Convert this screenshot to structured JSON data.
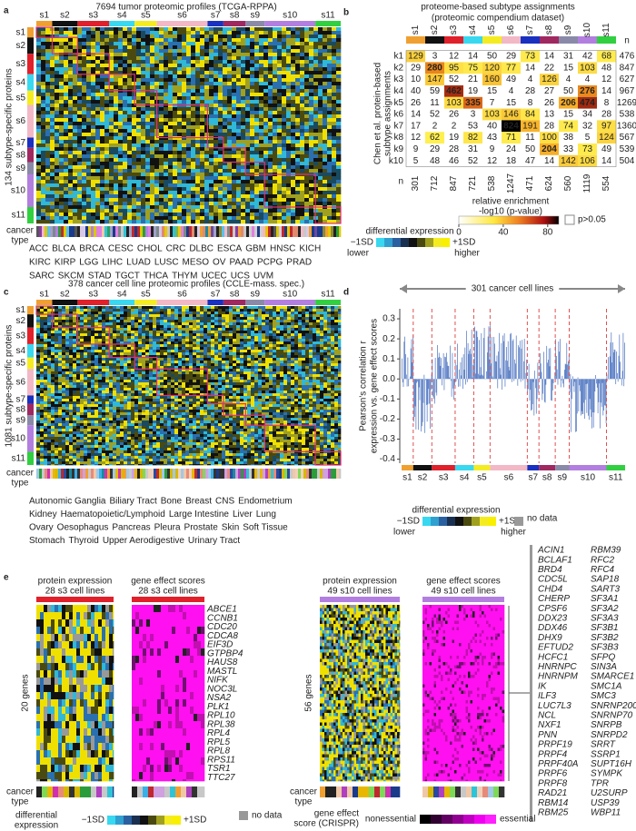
{
  "subtypes": [
    {
      "name": "s1",
      "color": "#f0a030"
    },
    {
      "name": "s2",
      "color": "#111111"
    },
    {
      "name": "s3",
      "color": "#e0202a"
    },
    {
      "name": "s4",
      "color": "#38d8f0"
    },
    {
      "name": "s5",
      "color": "#f4ec20"
    },
    {
      "name": "s6",
      "color": "#f2b8c6"
    },
    {
      "name": "s7",
      "color": "#1a30c0"
    },
    {
      "name": "s8",
      "color": "#a02860"
    },
    {
      "name": "s9",
      "color": "#8a8aa8"
    },
    {
      "name": "s10",
      "color": "#b27fe0"
    },
    {
      "name": "s11",
      "color": "#30d040"
    }
  ],
  "expression_legend": {
    "title": "differential expression",
    "low": "−1SD",
    "high": "+1SD",
    "low_word": "lower",
    "high_word": "higher",
    "no_data": "no data"
  },
  "panel_a": {
    "letter": "a",
    "title": "7694 tumor proteomic profiles (TCGA-RPPA)",
    "y_label": "134 subtype-specific proteins",
    "track_label": [
      "cancer",
      "type"
    ],
    "cancer_types": [
      [
        {
          "name": "ACC",
          "color": "#c8c8c8"
        },
        {
          "name": "BLCA",
          "color": "#5bc0eb"
        },
        {
          "name": "BRCA",
          "color": "#1a3a8a"
        },
        {
          "name": "CESC",
          "color": "#555555"
        },
        {
          "name": "CHOL",
          "color": "#e08a6e"
        },
        {
          "name": "CRC",
          "color": "#222222"
        },
        {
          "name": "DLBC",
          "color": "#f0a030"
        },
        {
          "name": "ESCA",
          "color": "#2ec4d8"
        },
        {
          "name": "GBM",
          "color": "#2a9d3a"
        },
        {
          "name": "HNSC",
          "color": "#f2b8c6"
        },
        {
          "name": "KICH",
          "color": "#c0282d"
        }
      ],
      [
        {
          "name": "KIRC",
          "color": "#d8c800"
        },
        {
          "name": "KIRP",
          "color": "#8a8a3a"
        },
        {
          "name": "LGG",
          "color": "#7ab55c"
        },
        {
          "name": "LIHC",
          "color": "#d8c8e8"
        },
        {
          "name": "LUAD",
          "color": "#8a3aa0"
        },
        {
          "name": "LUSC",
          "color": "#b27fe0"
        },
        {
          "name": "MESO",
          "color": "#e080e0"
        },
        {
          "name": "OV",
          "color": "#222222"
        },
        {
          "name": "PAAD",
          "color": "#c0282d"
        },
        {
          "name": "PCPG",
          "color": "#7a8a8a"
        },
        {
          "name": "PRAD",
          "color": "#1a3a8a"
        }
      ],
      [
        {
          "name": "SARC",
          "color": "#d0d0d0"
        },
        {
          "name": "SKCM",
          "color": "#f0c8a8"
        },
        {
          "name": "STAD",
          "color": "#1a8aa0"
        },
        {
          "name": "TGCT",
          "color": "#f0a030"
        },
        {
          "name": "THCA",
          "color": "#e8c800"
        },
        {
          "name": "THYM",
          "color": "#2aa060"
        },
        {
          "name": "UCEC",
          "color": "#c0282d"
        },
        {
          "name": "UCS",
          "color": "#a0a0c8"
        },
        {
          "name": "UVM",
          "color": "#6a4aa0"
        }
      ]
    ]
  },
  "panel_b": {
    "letter": "b",
    "title": [
      "proteome-based subtype assignments",
      "(proteomic compendium dataset)"
    ],
    "row_axis_label": [
      "Chen et al. protein-based",
      "subtype assignments"
    ],
    "n_label": "n",
    "rows": [
      {
        "label": "k1",
        "values": [
          129,
          3,
          12,
          14,
          50,
          29,
          73,
          14,
          31,
          42,
          68
        ],
        "n": 476
      },
      {
        "label": "k2",
        "values": [
          29,
          280,
          95,
          75,
          120,
          77,
          14,
          22,
          15,
          103,
          48
        ],
        "n": 847
      },
      {
        "label": "k3",
        "values": [
          10,
          147,
          52,
          21,
          160,
          49,
          4,
          126,
          4,
          4,
          12
        ],
        "n": 627
      },
      {
        "label": "k4",
        "values": [
          40,
          59,
          462,
          19,
          15,
          4,
          28,
          27,
          50,
          276,
          14
        ],
        "n": 967
      },
      {
        "label": "k5",
        "values": [
          26,
          11,
          103,
          335,
          7,
          15,
          8,
          26,
          206,
          474,
          8
        ],
        "n": 1269
      },
      {
        "label": "k6",
        "values": [
          14,
          52,
          26,
          3,
          103,
          146,
          84,
          13,
          15,
          34,
          28
        ],
        "n": 538
      },
      {
        "label": "k7",
        "values": [
          17,
          2,
          2,
          53,
          40,
          824,
          191,
          28,
          74,
          32,
          97
        ],
        "n": 1360
      },
      {
        "label": "k8",
        "values": [
          12,
          62,
          19,
          82,
          43,
          71,
          11,
          100,
          38,
          5,
          124
        ],
        "n": 567
      },
      {
        "label": "k9",
        "values": [
          9,
          29,
          28,
          31,
          9,
          24,
          50,
          204,
          33,
          73,
          49
        ],
        "n": 539
      },
      {
        "label": "k10",
        "values": [
          5,
          48,
          46,
          52,
          12,
          18,
          47,
          14,
          142,
          106,
          14
        ],
        "n": 504
      }
    ],
    "column_n": [
      301,
      712,
      847,
      721,
      538,
      1247,
      471,
      624,
      560,
      1119,
      554
    ],
    "legend": {
      "title": [
        "relative enrichment",
        "-log10 (p-value)"
      ],
      "clim": [
        0,
        90
      ],
      "ticks": [
        0,
        40,
        80
      ],
      "ns_label": "p>0.05"
    }
  },
  "panel_c": {
    "letter": "c",
    "title": "378 cancer cell line proteomic profiles (CCLE-mass. spec.)",
    "y_label": "1081 subtype-specific proteins",
    "track_label": [
      "cancer",
      "type"
    ],
    "cancer_types": [
      [
        {
          "name": "Autonomic Ganglia",
          "color": "#7ed957"
        },
        {
          "name": "Biliary Tract",
          "color": "#e88a7a"
        },
        {
          "name": "Bone",
          "color": "#c8c8c8"
        },
        {
          "name": "Breast",
          "color": "#1a3a8a"
        },
        {
          "name": "CNS",
          "color": "#2a9d3a"
        },
        {
          "name": "Endometrium",
          "color": "#c0282d"
        }
      ],
      [
        {
          "name": "Kidney",
          "color": "#d8b800"
        },
        {
          "name": "Haematopoietic/Lymphoid",
          "color": "#f0a030"
        },
        {
          "name": "Large Intestine",
          "color": "#333333"
        },
        {
          "name": "Liver",
          "color": "#f0c8a8"
        },
        {
          "name": "Lung",
          "color": "#b040c0"
        }
      ],
      [
        {
          "name": "Ovary",
          "color": "#222222"
        },
        {
          "name": "Oesophagus",
          "color": "#2ec4d8"
        },
        {
          "name": "Pancreas",
          "color": "#d030b0"
        },
        {
          "name": "Pleura",
          "color": "#d0a0e0"
        },
        {
          "name": "Prostate",
          "color": "#2a4aa0"
        },
        {
          "name": "Skin",
          "color": "#f0d0b8"
        },
        {
          "name": "Soft Tissue",
          "color": "#c8c8c8"
        }
      ],
      [
        {
          "name": "Stomach",
          "color": "#1a8aa0"
        },
        {
          "name": "Thyroid",
          "color": "#e8b800"
        },
        {
          "name": "Upper Aerodigestive",
          "color": "#3ab0e8"
        },
        {
          "name": "Urinary Tract",
          "color": "#a0c8e8"
        }
      ]
    ]
  },
  "panel_d": {
    "letter": "d",
    "annotation": "301 cancer cell lines",
    "y_label": [
      "Pearson's correlation r",
      "expression vs. gene effect scores"
    ],
    "ylim": [
      -0.42,
      0.35
    ],
    "yticks": [
      -0.4,
      -0.3,
      -0.2,
      -0.1,
      {
        "value": 0,
        "label": "0.0"
      },
      0.1,
      0.2,
      0.3
    ]
  },
  "panel_e": {
    "letter": "e",
    "left": {
      "protein_title": [
        "protein expression",
        "28 s3 cell lines"
      ],
      "effect_title": [
        "gene effect scores",
        "28 s3 cell lines"
      ],
      "gene_count": "20 genes",
      "genes": [
        "ABCE1",
        "CCNB1",
        "CDC20",
        "CDCA8",
        "EIF3D",
        "GTPBP4",
        "HAUS8",
        "MASTL",
        "NIFK",
        "NOC3L",
        "NSA2",
        "PLK1",
        "RPL10",
        "RPL38",
        "RPL4",
        "RPL5",
        "RPL8",
        "RPS11",
        "TSR1",
        "TTC27"
      ]
    },
    "right": {
      "protein_title": [
        "protein expression",
        "49 s10 cell lines"
      ],
      "effect_title": [
        "gene effect scores",
        "49 s10 cell lines"
      ],
      "gene_count": "56 genes",
      "genes": [
        [
          "ACIN1",
          "BCLAF1",
          "BRD4",
          "CDC5L",
          "CHD4",
          "CHERP",
          "CPSF6",
          "DDX23",
          "DDX46",
          "DHX9",
          "EFTUD2",
          "HCFC1",
          "HNRNPC",
          "HNRNPM",
          "IK",
          "ILF3",
          "LUC7L3",
          "NCL",
          "NXF1",
          "PNN",
          "PRPF19",
          "PRPF4",
          "PRPF40A",
          "PRPF6",
          "PRPF8",
          "RAD21",
          "RBM14",
          "RBM25"
        ],
        [
          "RBM39",
          "RFC2",
          "RFC4",
          "SAP18",
          "SART3",
          "SF3A1",
          "SF3A2",
          "SF3A3",
          "SF3B1",
          "SF3B2",
          "SF3B3",
          "SFPQ",
          "SIN3A",
          "SMARCE1",
          "SMC1A",
          "SMC3",
          "SNRNP200",
          "SNRNP70",
          "SNRPB",
          "SNRPD2",
          "SRRT",
          "SSRP1",
          "SUPT16H",
          "SYMPK",
          "TPR",
          "U2SURP",
          "USP39",
          "WBP11"
        ]
      ]
    },
    "track_label": [
      "cancer",
      "type"
    ],
    "expression_legend_title": [
      "differential",
      "expression"
    ],
    "effect_legend": {
      "title": [
        "gene effect",
        "score (CRISPR)"
      ],
      "low": "nonessential",
      "high": "essential"
    }
  }
}
